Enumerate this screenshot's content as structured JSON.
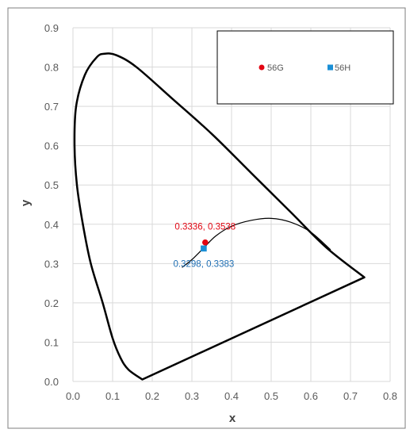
{
  "chart_data": {
    "type": "scatter",
    "title": "",
    "xlabel": "x",
    "ylabel": "y",
    "xlim": [
      0.0,
      0.8
    ],
    "ylim": [
      0.0,
      0.9
    ],
    "x_ticks": [
      "0.0",
      "0.1",
      "0.2",
      "0.3",
      "0.4",
      "0.5",
      "0.6",
      "0.7",
      "0.8"
    ],
    "y_ticks": [
      "0.0",
      "0.1",
      "0.2",
      "0.3",
      "0.4",
      "0.5",
      "0.6",
      "0.7",
      "0.8",
      "0.9"
    ],
    "grid": true,
    "legend_position": "top-right",
    "series": [
      {
        "name": "56G",
        "marker": "circle",
        "color": "#e30613",
        "points": [
          {
            "x": 0.3336,
            "y": 0.3538,
            "label": "0.3336, 0.3538"
          }
        ]
      },
      {
        "name": "56H",
        "marker": "square",
        "color": "#1a8fd6",
        "label_color": "#1f6fb4",
        "points": [
          {
            "x": 0.3298,
            "y": 0.3383,
            "label": "0.3298, 0.3383"
          }
        ]
      }
    ],
    "spectral_locus": [
      [
        0.175,
        0.005
      ],
      [
        0.14,
        0.03
      ],
      [
        0.12,
        0.06
      ],
      [
        0.1,
        0.11
      ],
      [
        0.075,
        0.2
      ],
      [
        0.045,
        0.3
      ],
      [
        0.025,
        0.4
      ],
      [
        0.01,
        0.5
      ],
      [
        0.004,
        0.6
      ],
      [
        0.008,
        0.7
      ],
      [
        0.03,
        0.78
      ],
      [
        0.06,
        0.825
      ],
      [
        0.08,
        0.834
      ],
      [
        0.11,
        0.83
      ],
      [
        0.16,
        0.8
      ],
      [
        0.25,
        0.72
      ],
      [
        0.35,
        0.63
      ],
      [
        0.45,
        0.53
      ],
      [
        0.55,
        0.43
      ],
      [
        0.64,
        0.34
      ],
      [
        0.735,
        0.265
      ]
    ],
    "planckian_locus": [
      [
        0.275,
        0.29
      ],
      [
        0.3,
        0.31
      ],
      [
        0.33,
        0.34
      ],
      [
        0.36,
        0.37
      ],
      [
        0.4,
        0.395
      ],
      [
        0.45,
        0.41
      ],
      [
        0.5,
        0.415
      ],
      [
        0.55,
        0.405
      ],
      [
        0.6,
        0.38
      ],
      [
        0.65,
        0.335
      ]
    ]
  }
}
